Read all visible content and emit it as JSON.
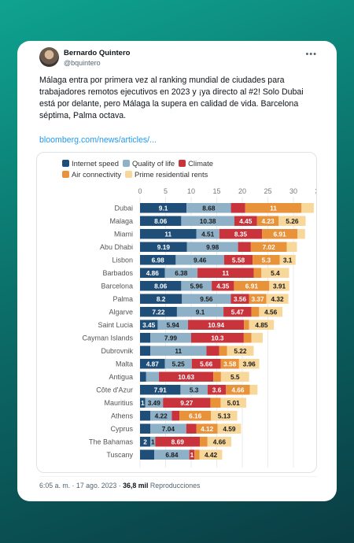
{
  "tweet": {
    "author_name": "Bernardo Quintero",
    "author_handle": "@bquintero",
    "text": "Málaga entra por primera vez al ranking mundial de ciudades para trabajadores remotos ejecutivos en 2023 y ¡ya directo al #2! Solo Dubai está por delante, pero Málaga la supera en calidad de vida. Barcelona séptima, Palma octava.",
    "link": "bloomberg.com/news/articles/...",
    "time": "6:05 a. m. · 17 ago. 2023 ·",
    "views": "36,8 mil",
    "views_label": "Reproducciones",
    "menu_icon": "more-icon"
  },
  "colors": {
    "internet": "#1f4e79",
    "quality": "#8fb1c8",
    "climate": "#c8333c",
    "air": "#e8923a",
    "prime": "#f7d79a"
  },
  "chart_data": {
    "type": "bar",
    "orientation": "horizontal",
    "stacked": true,
    "title": "",
    "xlabel": "",
    "ylabel": "",
    "xlim": [
      0,
      35
    ],
    "xticks": [
      0,
      5,
      10,
      15,
      20,
      25,
      30,
      35
    ],
    "grid": true,
    "legend_position": "top",
    "categories": [
      "Dubai",
      "Malaga",
      "Miami",
      "Abu Dhabi",
      "Lisbon",
      "Barbados",
      "Barcelona",
      "Palma",
      "Algarve",
      "Saint Lucia",
      "Cayman Islands",
      "Dubrovnik",
      "Malta",
      "Antigua",
      "Côte d'Azur",
      "Mauritius",
      "Athens",
      "Cyprus",
      "The Bahamas",
      "Tuscany"
    ],
    "series": [
      {
        "name": "Internet speed",
        "color_key": "internet",
        "values": [
          9.1,
          8.06,
          11,
          9.19,
          6.98,
          4.86,
          8.06,
          8.2,
          7.22,
          3.45,
          2,
          2,
          4.87,
          1.2,
          7.91,
          1,
          2,
          2,
          2,
          2.8
        ]
      },
      {
        "name": "Quality of life",
        "color_key": "quality",
        "values": [
          8.68,
          10.38,
          4.51,
          9.98,
          9.46,
          6.38,
          5.96,
          9.56,
          9.1,
          5.94,
          7.99,
          11,
          5.25,
          2.5,
          5.3,
          3.49,
          4.22,
          7.04,
          1,
          6.84
        ]
      },
      {
        "name": "Climate",
        "color_key": "climate",
        "values": [
          2.8,
          4.45,
          8.35,
          2.5,
          5.58,
          11,
          4.35,
          3.56,
          5.47,
          10.94,
          10.3,
          2.5,
          5.66,
          10.63,
          3.6,
          9.27,
          1.5,
          2,
          8.69,
          1
        ]
      },
      {
        "name": "Air connectivity",
        "color_key": "air",
        "values": [
          11,
          4.23,
          6.91,
          7.02,
          5.3,
          1.5,
          6.91,
          3.37,
          1.5,
          1,
          1.5,
          1.5,
          3.58,
          1.5,
          4.66,
          2,
          6.16,
          4.12,
          1.5,
          1
        ]
      },
      {
        "name": "Prime residential rents",
        "color_key": "prime",
        "values": [
          2.4,
          5.26,
          1.5,
          2,
          3.1,
          5.4,
          3.91,
          4.32,
          4.56,
          4.85,
          2.2,
          5.22,
          3.96,
          5.5,
          1.5,
          5.01,
          5.13,
          4.59,
          4.66,
          4.42
        ]
      }
    ],
    "value_labels": [
      [
        "9.1",
        "8.68",
        "",
        "11",
        ""
      ],
      [
        "8.06",
        "10.38",
        "4.45",
        "4.23",
        "5.26"
      ],
      [
        "11",
        "4.51",
        "8.35",
        "6.91",
        ""
      ],
      [
        "9.19",
        "9.98",
        "",
        "7.02",
        ""
      ],
      [
        "6.98",
        "9.46",
        "5.58",
        "5.3",
        "3.1"
      ],
      [
        "4.86",
        "6.38",
        "11",
        "",
        "5.4"
      ],
      [
        "8.06",
        "5.96",
        "4.35",
        "6.91",
        "3.91"
      ],
      [
        "8.2",
        "9.56",
        "3.56",
        "3.37",
        "4.32"
      ],
      [
        "7.22",
        "9.1",
        "5.47",
        "",
        "4.56"
      ],
      [
        "3.45",
        "5.94",
        "10.94",
        "",
        "4.85"
      ],
      [
        "",
        "7.99",
        "10.3",
        "",
        ""
      ],
      [
        "",
        "11",
        "",
        "",
        "5.22"
      ],
      [
        "4.87",
        "5.25",
        "5.66",
        "3.58",
        "3.96"
      ],
      [
        "",
        "",
        "10.63",
        "",
        "5.5"
      ],
      [
        "7.91",
        "5.3",
        "3.6",
        "4.66",
        ""
      ],
      [
        "1",
        "3.49",
        "9.27",
        "",
        "5.01"
      ],
      [
        "",
        "4.22",
        "",
        "6.16",
        "5.13"
      ],
      [
        "",
        "7.04",
        "",
        "4.12",
        "4.59"
      ],
      [
        "2",
        "1",
        "8.69",
        "",
        "4.66"
      ],
      [
        "",
        "6.84",
        "1",
        "",
        "4.42"
      ]
    ]
  }
}
